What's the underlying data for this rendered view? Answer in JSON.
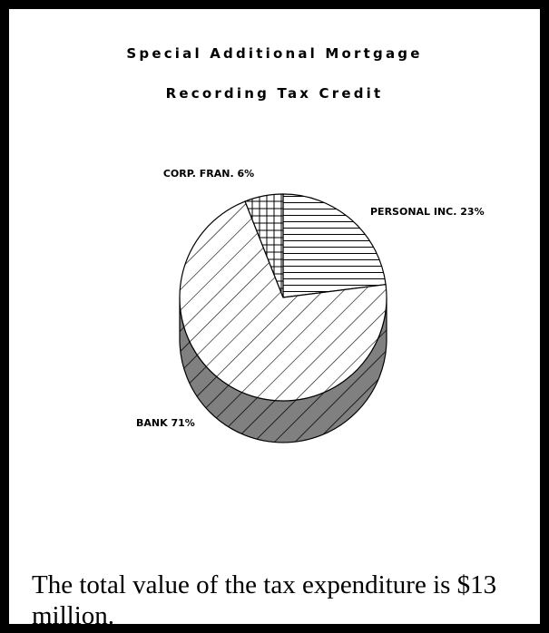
{
  "chart_data": {
    "type": "pie",
    "title": "Special Additional Mortgage",
    "subtitle": "Recording Tax Credit",
    "categories": [
      "PERSONAL INC.",
      "BANK",
      "CORP. FRAN."
    ],
    "values": [
      23,
      71,
      6
    ],
    "unit": "%",
    "labels": [
      "PERSONAL INC. 23%",
      "BANK 71%",
      "CORP. FRAN. 6%"
    ],
    "patterns": [
      "horizontal",
      "diagonal",
      "grid"
    ],
    "colors": {
      "edge": "#000000",
      "face": "#ffffff",
      "side": "#808080"
    }
  },
  "caption": "The total value of the tax expenditure is $13 million."
}
